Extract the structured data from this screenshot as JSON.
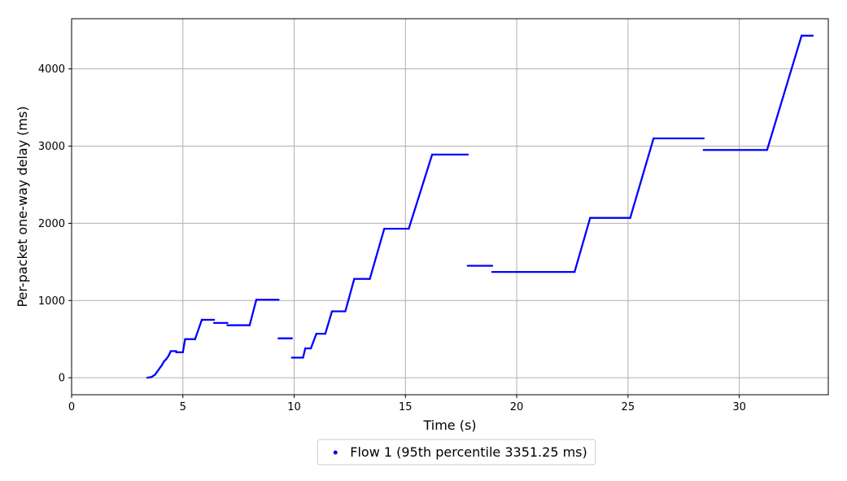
{
  "chart_data": {
    "type": "scatter",
    "xlabel": "Time (s)",
    "ylabel": "Per-packet one-way delay (ms)",
    "xlim": [
      0,
      34
    ],
    "ylim": [
      -220,
      4650
    ],
    "xticks": [
      0,
      5,
      10,
      15,
      20,
      25,
      30
    ],
    "yticks": [
      0,
      1000,
      2000,
      3000,
      4000
    ],
    "grid": true,
    "legend_position": "bottom-center",
    "series": [
      {
        "name": "Flow 1 (95th percentile 3351.25 ms)",
        "color": "#0000ff",
        "segments": [
          [
            [
              3.4,
              0
            ],
            [
              3.6,
              10
            ],
            [
              3.75,
              40
            ],
            [
              3.85,
              80
            ],
            [
              3.95,
              120
            ],
            [
              4.05,
              160
            ],
            [
              4.15,
              210
            ],
            [
              4.25,
              240
            ],
            [
              4.35,
              280
            ],
            [
              4.45,
              340
            ]
          ],
          [
            [
              4.45,
              345
            ],
            [
              4.7,
              345
            ]
          ],
          [
            [
              4.7,
              330
            ],
            [
              5.0,
              330
            ]
          ],
          [
            [
              5.0,
              330
            ],
            [
              5.1,
              500
            ]
          ],
          [
            [
              5.1,
              500
            ],
            [
              5.55,
              500
            ]
          ],
          [
            [
              5.55,
              500
            ],
            [
              5.85,
              750
            ]
          ],
          [
            [
              5.85,
              750
            ],
            [
              6.4,
              750
            ]
          ],
          [
            [
              6.4,
              710
            ],
            [
              7.0,
              710
            ]
          ],
          [
            [
              7.0,
              680
            ],
            [
              8.0,
              680
            ]
          ],
          [
            [
              8.0,
              680
            ],
            [
              8.3,
              1010
            ]
          ],
          [
            [
              8.3,
              1010
            ],
            [
              9.3,
              1010
            ]
          ],
          [
            [
              9.3,
              510
            ],
            [
              9.9,
              510
            ]
          ],
          [
            [
              9.9,
              260
            ],
            [
              10.4,
              260
            ]
          ],
          [
            [
              10.4,
              260
            ],
            [
              10.5,
              380
            ]
          ],
          [
            [
              10.5,
              380
            ],
            [
              10.75,
              380
            ]
          ],
          [
            [
              10.75,
              380
            ],
            [
              11.0,
              570
            ]
          ],
          [
            [
              11.0,
              570
            ],
            [
              11.4,
              570
            ]
          ],
          [
            [
              11.4,
              570
            ],
            [
              11.7,
              860
            ]
          ],
          [
            [
              11.7,
              860
            ],
            [
              12.3,
              860
            ]
          ],
          [
            [
              12.3,
              860
            ],
            [
              12.7,
              1280
            ]
          ],
          [
            [
              12.7,
              1280
            ],
            [
              13.4,
              1280
            ]
          ],
          [
            [
              13.4,
              1280
            ],
            [
              14.05,
              1930
            ]
          ],
          [
            [
              14.05,
              1930
            ],
            [
              15.15,
              1930
            ]
          ],
          [
            [
              15.15,
              1930
            ],
            [
              16.2,
              2890
            ]
          ],
          [
            [
              16.2,
              2890
            ],
            [
              17.8,
              2890
            ]
          ],
          [
            [
              17.8,
              1450
            ],
            [
              18.9,
              1450
            ]
          ],
          [
            [
              18.9,
              1370
            ],
            [
              22.6,
              1370
            ]
          ],
          [
            [
              22.6,
              1370
            ],
            [
              23.3,
              2070
            ]
          ],
          [
            [
              23.3,
              2070
            ],
            [
              25.1,
              2070
            ]
          ],
          [
            [
              25.1,
              2070
            ],
            [
              26.15,
              3100
            ]
          ],
          [
            [
              26.15,
              3100
            ],
            [
              28.4,
              3100
            ]
          ],
          [
            [
              28.4,
              2950
            ],
            [
              31.25,
              2950
            ]
          ],
          [
            [
              31.25,
              2950
            ],
            [
              32.8,
              4430
            ]
          ],
          [
            [
              32.8,
              4430
            ],
            [
              33.3,
              4430
            ]
          ]
        ]
      }
    ]
  }
}
